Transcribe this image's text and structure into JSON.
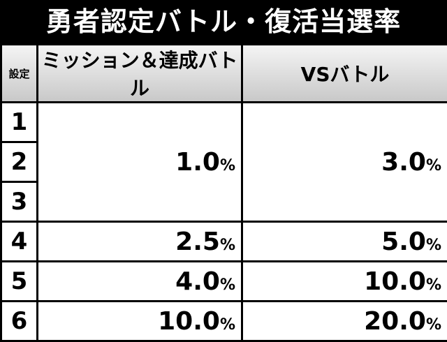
{
  "title": "勇者認定バトル・復活当選率",
  "table": {
    "header": [
      "設定",
      "ミッション＆達成バトル",
      "VSバトル"
    ],
    "rows": [
      {
        "settings": [
          "1",
          "2",
          "3"
        ],
        "cells": [
          {
            "value": "1.0",
            "unit": "%"
          },
          {
            "value": "3.0",
            "unit": "%"
          }
        ]
      },
      {
        "settings": [
          "4"
        ],
        "cells": [
          {
            "value": "2.5",
            "unit": "%"
          },
          {
            "value": "5.0",
            "unit": "%"
          }
        ]
      },
      {
        "settings": [
          "5"
        ],
        "cells": [
          {
            "value": "4.0",
            "unit": "%"
          },
          {
            "value": "10.0",
            "unit": "%"
          }
        ]
      },
      {
        "settings": [
          "6"
        ],
        "cells": [
          {
            "value": "10.0",
            "unit": "%"
          },
          {
            "value": "20.0",
            "unit": "%"
          }
        ]
      }
    ]
  }
}
